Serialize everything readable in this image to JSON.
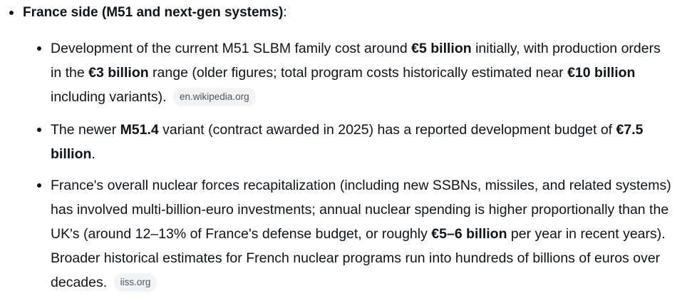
{
  "heading": {
    "label": "France side (M51 and next-gen systems)",
    "suffix": ":"
  },
  "items": [
    {
      "t1": "Development of the current M51 SLBM family cost around ",
      "b1": "€5 billion",
      "t2": " initially, with production orders in the ",
      "b2": "€3 billion",
      "t3": " range (older figures; total program costs historically estimated near ",
      "b3": "€10 billion",
      "t4": " including variants).",
      "source": "en.wikipedia.org"
    },
    {
      "t1": "The newer ",
      "b1": "M51.4",
      "t2": " variant (contract awarded in 2025) has a reported development budget of ",
      "b2": "€7.5 billion",
      "t3": "."
    },
    {
      "t1": "France's overall nuclear forces recapitalization (including new SSBNs, missiles, and related systems) has involved multi-billion-euro investments; annual nuclear spending is higher proportionally than the UK's (around 12–13% of France's defense budget, or roughly ",
      "b1": "€5–6 billion",
      "t2": " per year in recent years). Broader historical estimates for French nuclear programs run into hundreds of billions of euros over decades.",
      "source": "iiss.org"
    }
  ]
}
